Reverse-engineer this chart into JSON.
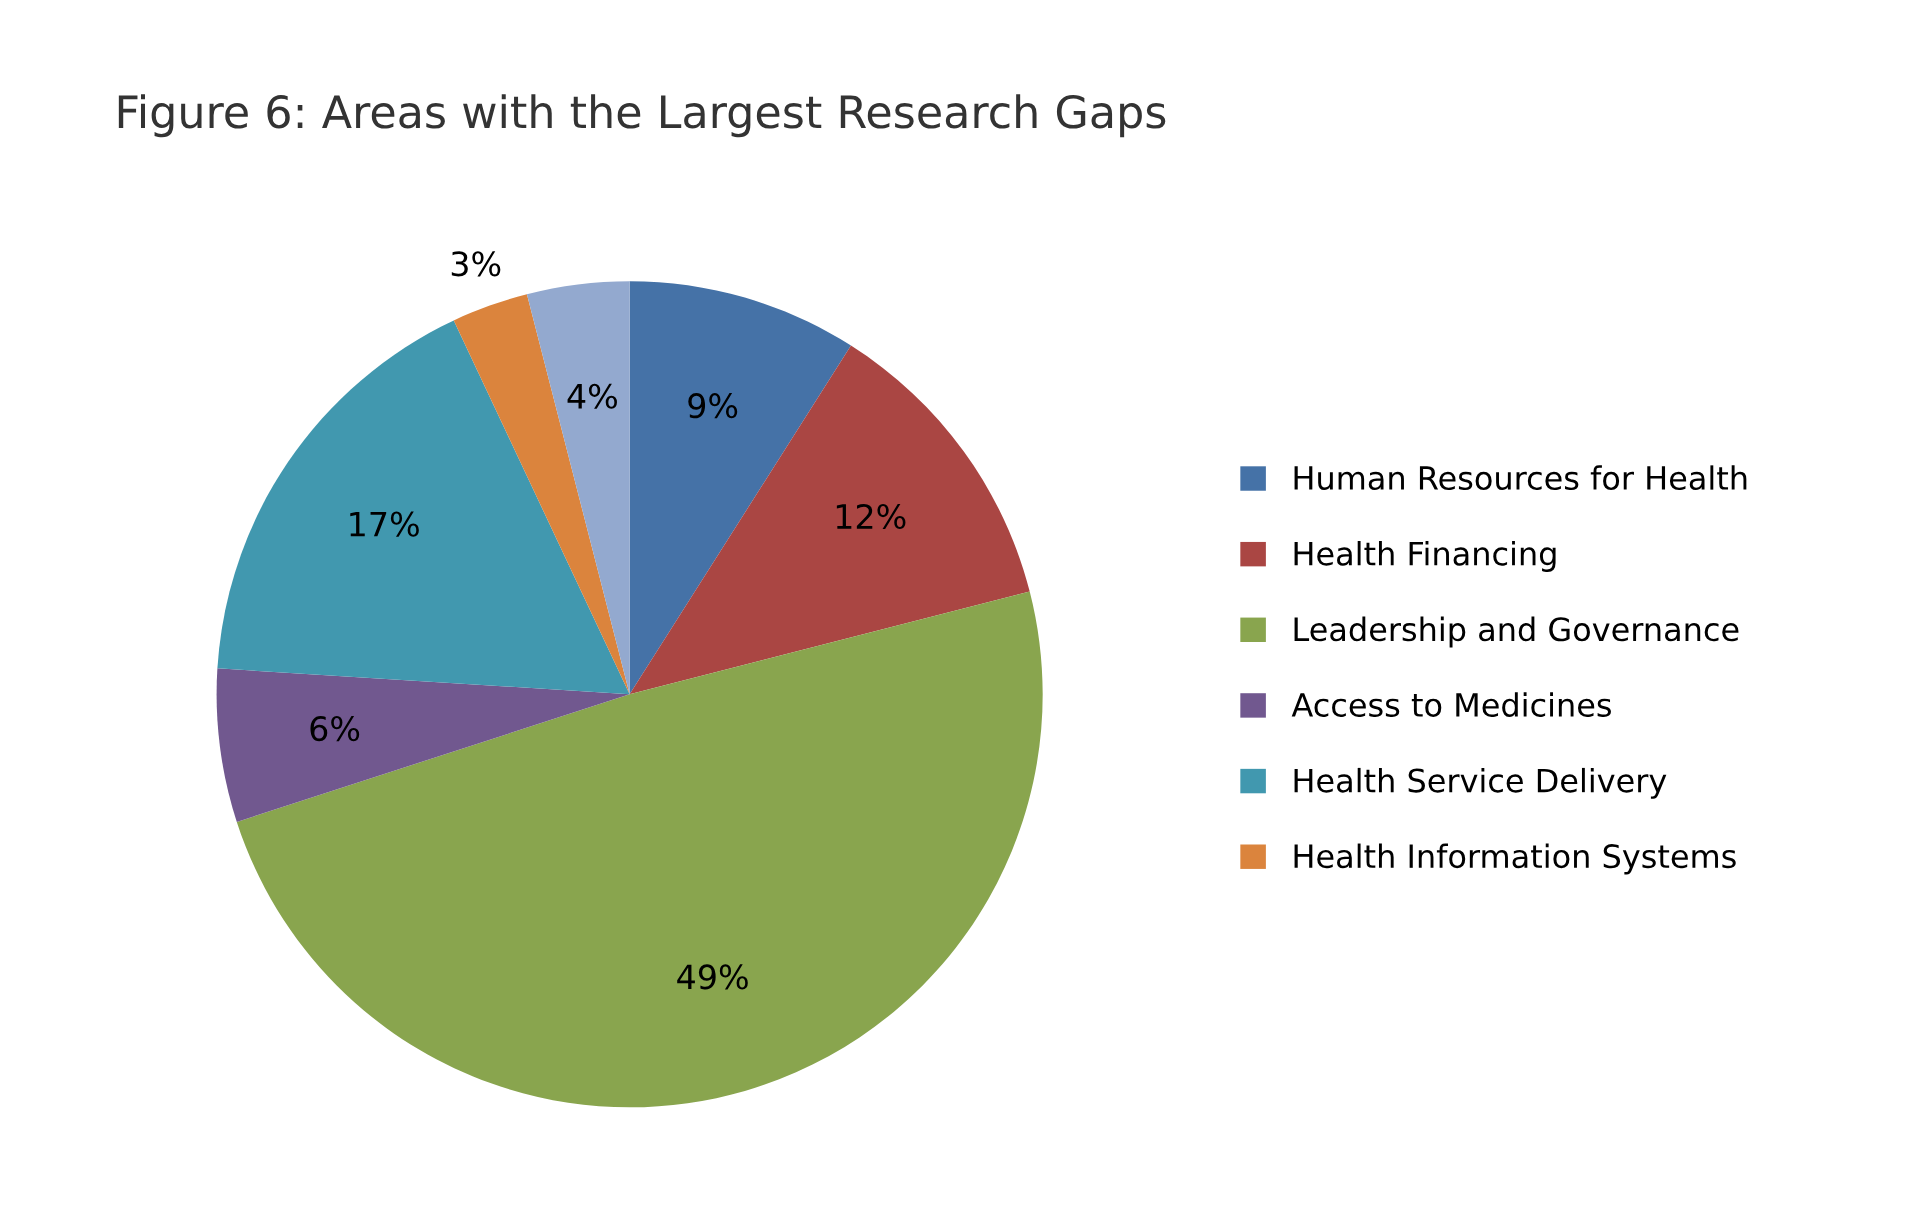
{
  "chart_data": {
    "type": "pie",
    "title": "Figure 6: Areas with the Largest Research Gaps",
    "categories": [
      "Human Resources for Health",
      "Health Financing",
      "Leadership and Governance",
      "Access to Medicines",
      "Health Service Delivery",
      "Health Information Systems",
      null
    ],
    "values": [
      9,
      12,
      49,
      6,
      17,
      3,
      4
    ],
    "value_labels": [
      "9%",
      "12%",
      "49%",
      "6%",
      "17%",
      "3%",
      "4%"
    ],
    "colors": [
      "#4572a7",
      "#aa4643",
      "#89a54e",
      "#71588f",
      "#4198af",
      "#db843d",
      "#93a9cf"
    ],
    "legend": "right"
  }
}
